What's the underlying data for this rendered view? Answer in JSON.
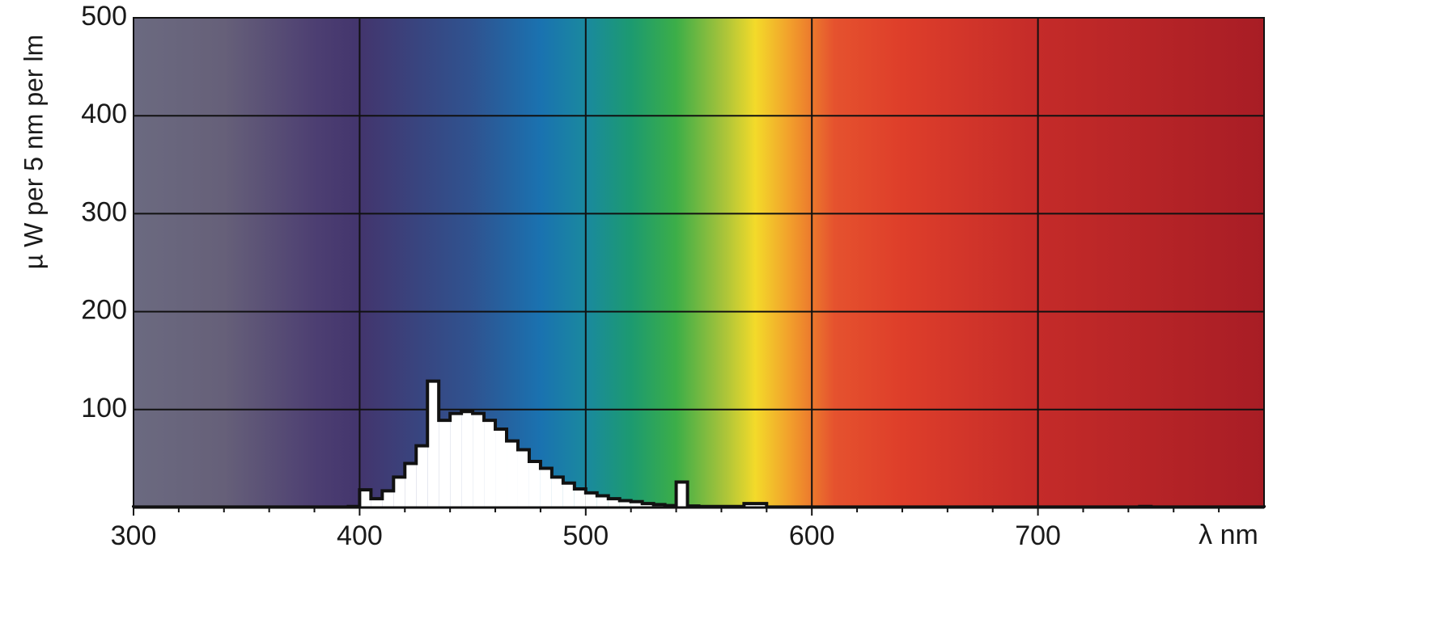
{
  "chart_data": {
    "type": "histogram",
    "x_label": "λ nm",
    "y_label": "µ W per 5 nm per lm",
    "bins": [
      300,
      305,
      310,
      315,
      320,
      325,
      330,
      335,
      340,
      345,
      350,
      355,
      360,
      365,
      370,
      375,
      380,
      385,
      390,
      395,
      400,
      405,
      410,
      415,
      420,
      425,
      430,
      435,
      440,
      445,
      450,
      455,
      460,
      465,
      470,
      475,
      480,
      485,
      490,
      495,
      500,
      505,
      510,
      515,
      520,
      525,
      530,
      535,
      540,
      545,
      550,
      555,
      560,
      565,
      570,
      575,
      580,
      585,
      590,
      595,
      600,
      605,
      610,
      615,
      620,
      625,
      630,
      635,
      640,
      645,
      650,
      655,
      660,
      665,
      670,
      675,
      680,
      685,
      690,
      695,
      700,
      705,
      710,
      715,
      720,
      725,
      730,
      735,
      740,
      745,
      750,
      755,
      760,
      765,
      770,
      775,
      780,
      785,
      790,
      795,
      800
    ],
    "values": [
      0.5,
      0.5,
      0.5,
      0.5,
      0.5,
      0.5,
      0.5,
      0.5,
      0.5,
      0.5,
      0.5,
      0.5,
      0.5,
      0.5,
      0.5,
      0.5,
      0.5,
      0.5,
      0.5,
      1,
      18,
      9,
      17,
      31,
      45,
      63,
      129,
      89,
      96,
      98,
      96,
      89,
      80,
      68,
      59,
      47,
      40,
      31,
      25,
      19,
      15,
      12,
      9,
      7,
      6,
      4,
      3,
      2,
      26,
      1.5,
      1,
      1,
      1,
      1,
      4,
      4,
      0.5,
      0.5,
      0.5,
      0.5,
      0.5,
      0.5,
      0.5,
      0.5,
      0.5,
      0.5,
      0.5,
      0.5,
      0.5,
      0.5,
      0.5,
      0.5,
      0.5,
      0.5,
      0.5,
      0.5,
      0.5,
      0.5,
      0.5,
      0.5,
      0.5,
      0.5,
      0.5,
      0.5,
      0.5,
      0.5,
      0.5,
      0.5,
      0.5,
      1,
      0.5,
      0.5,
      0.5,
      0.5,
      0.5,
      0.5,
      0.5,
      0.5,
      0.5,
      0.5
    ],
    "color": "#ffffff",
    "xlim": [
      300,
      800
    ],
    "xticks": [
      300,
      400,
      500,
      600,
      700
    ],
    "x_minor_ticks": [
      320,
      340,
      360,
      380,
      420,
      440,
      460,
      480,
      520,
      540,
      560,
      580,
      620,
      640,
      660,
      680,
      720,
      740,
      760,
      780
    ],
    "ylim": [
      0,
      500
    ],
    "yticks": [
      100,
      200,
      300,
      400,
      500
    ],
    "grid": true
  }
}
